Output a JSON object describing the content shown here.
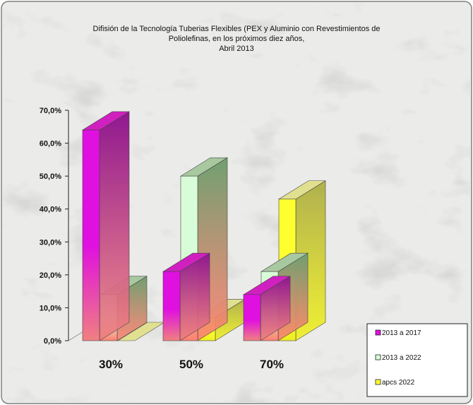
{
  "chart_data": {
    "type": "bar",
    "title_lines": [
      "Difisión de la Tecnología  Tuberias Flexibles (PEX y Aluminio con Revestimientos de",
      "Poliolefinas, en los próximos diez años,",
      "Abril 2013"
    ],
    "categories": [
      "30%",
      "50%",
      "70%"
    ],
    "series": [
      {
        "name": "2013 a 2017",
        "values": [
          64.0,
          21.0,
          14.0
        ]
      },
      {
        "name": "2013 a 2022",
        "values": [
          14.0,
          50.0,
          21.0
        ]
      },
      {
        "name": "apcs 2022",
        "values": [
          0.0,
          7.0,
          43.0
        ]
      }
    ],
    "yticks": [
      "0,0%",
      "10,0%",
      "20,0%",
      "30,0%",
      "40,0%",
      "50,0%",
      "60,0%",
      "70,0%"
    ],
    "ylim": [
      0,
      70
    ],
    "legend_position": "bottom-right",
    "grid": false,
    "colors": {
      "series_top": [
        "#e010e0",
        "#d8fcd8",
        "#ffff30"
      ],
      "series_bottom": [
        "#f08080",
        "#ff8070",
        "#f0f020"
      ],
      "series_side": [
        "#901890",
        "#70a070",
        "#b0b050"
      ],
      "series_cap": [
        "#d020c0",
        "#a8c8a0",
        "#e0e090"
      ],
      "background": "#e4e4e2",
      "frame": "#808080"
    }
  }
}
